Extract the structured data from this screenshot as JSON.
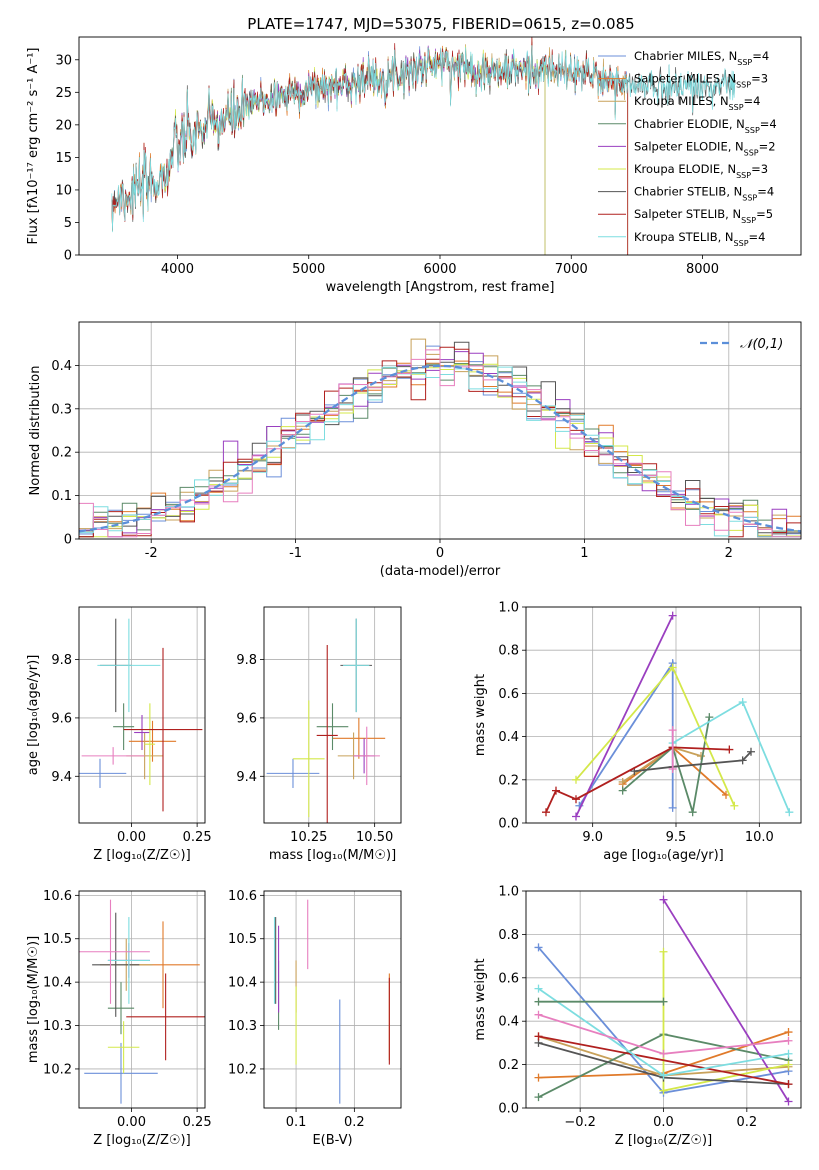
{
  "figure_title": "PLATE=1747, MJD=53075, FIBERID=0615, z=0.085",
  "palette": {
    "chabrier_miles": "#6b8fd9",
    "salpeter_miles": "#e07a2a",
    "kroupa_miles": "#c8a15a",
    "chabrier_elodie": "#5b8a68",
    "salpeter_elodie": "#9a3fc0",
    "kroupa_elodie": "#d4e84a",
    "chabrier_stelib": "#555555",
    "salpeter_stelib": "#b0201f",
    "kroupa_stelib": "#7ddde0",
    "extra_pink": "#e77fbf",
    "normal_curve": "#5b8fd9"
  },
  "chart_data": [
    {
      "id": "spectrum",
      "type": "line",
      "title": "PLATE=1747, MJD=53075, FIBERID=0615, z=0.085",
      "xlabel": "wavelength [Angstrom, rest frame]",
      "ylabel": "Flux [fλ10⁻¹⁷ erg cm⁻² s⁻¹ A⁻¹]",
      "xlim": [
        3250,
        8750
      ],
      "ylim": [
        0,
        33.5
      ],
      "xticks": [
        4000,
        5000,
        6000,
        7000,
        8000
      ],
      "yticks": [
        0,
        5,
        10,
        15,
        20,
        25,
        30
      ],
      "grid": false,
      "legend_position": "upper-right",
      "continuum": {
        "x": [
          3500,
          3700,
          3900,
          4000,
          4200,
          4400,
          4600,
          4800,
          5000,
          5200,
          5400,
          5600,
          5800,
          6000,
          6200,
          6400,
          6600,
          6800,
          7000,
          7200,
          7400
        ],
        "y": [
          8.5,
          10,
          12,
          17,
          19.5,
          21,
          23.5,
          24.5,
          25.5,
          26,
          27,
          27.5,
          28.5,
          29.5,
          29,
          28,
          28.5,
          28.5,
          28,
          27.5,
          26
        ]
      },
      "series": [
        {
          "name": "Chabrier MILES, N_SSP=4",
          "legend_label": "Chabrier MILES, NSSP=4",
          "color_key": "chabrier_miles",
          "wmin": 3500,
          "wmax": 7430
        },
        {
          "name": "Salpeter MILES, N_SSP=3",
          "legend_label": "Salpeter MILES, NSSP=3",
          "color_key": "salpeter_miles",
          "wmin": 3500,
          "wmax": 7430
        },
        {
          "name": "Kroupa MILES, N_SSP=4",
          "legend_label": "Kroupa MILES, NSSP=4",
          "color_key": "kroupa_miles",
          "wmin": 3500,
          "wmax": 7430
        },
        {
          "name": "Chabrier ELODIE, N_SSP=4",
          "legend_label": "Chabrier ELODIE, NSSP=4",
          "color_key": "chabrier_elodie",
          "wmin": 3900,
          "wmax": 6800
        },
        {
          "name": "Salpeter ELODIE, N_SSP=2",
          "legend_label": "Salpeter ELODIE, NSSP=2",
          "color_key": "salpeter_elodie",
          "wmin": 3900,
          "wmax": 6800
        },
        {
          "name": "Kroupa ELODIE, N_SSP=3",
          "legend_label": "Kroupa ELODIE, NSSP=3",
          "color_key": "kroupa_elodie",
          "wmin": 3900,
          "wmax": 6800
        },
        {
          "name": "Chabrier STELIB, N_SSP=4",
          "legend_label": "Chabrier STELIB, NSSP=4",
          "color_key": "chabrier_stelib",
          "wmin": 3500,
          "wmax": 8250
        },
        {
          "name": "Salpeter STELIB, N_SSP=5",
          "legend_label": "Salpeter STELIB, NSSP=5",
          "color_key": "salpeter_stelib",
          "wmin": 3500,
          "wmax": 7430
        },
        {
          "name": "Kroupa STELIB, N_SSP=4",
          "legend_label": "Kroupa STELIB, NSSP=4",
          "color_key": "kroupa_stelib",
          "wmin": 3500,
          "wmax": 8250
        }
      ]
    },
    {
      "id": "residuals",
      "type": "line",
      "xlabel": "(data-model)/error",
      "ylabel": "Normed distribution",
      "xlim": [
        -2.5,
        2.5
      ],
      "ylim": [
        0,
        0.5
      ],
      "xticks": [
        -2,
        -1,
        0,
        1,
        2
      ],
      "yticks": [
        0.0,
        0.1,
        0.2,
        0.3,
        0.4
      ],
      "grid": true,
      "legend_position": "upper-right",
      "legend_label": "𝒩(0,1)",
      "curve": {
        "type": "normal",
        "mean": 0,
        "sigma": 1
      },
      "hist_bin_width": 0.1,
      "hist_colors": [
        "chabrier_miles",
        "salpeter_miles",
        "kroupa_miles",
        "chabrier_elodie",
        "salpeter_elodie",
        "kroupa_elodie",
        "chabrier_stelib",
        "salpeter_stelib",
        "kroupa_stelib",
        "extra_pink"
      ]
    },
    {
      "id": "age_vs_Z",
      "type": "scatter",
      "xlabel": "Z [log₁₀(Z/Z☉)]",
      "ylabel": "age  [log₁₀(age/yr)]",
      "xlim": [
        -0.2,
        0.28
      ],
      "ylim": [
        9.24,
        9.98
      ],
      "xticks": [
        "0.00",
        "0.25"
      ],
      "yticks": [
        "9.4",
        "9.6",
        "9.8"
      ],
      "grid": true,
      "points": [
        {
          "x": -0.12,
          "y": 9.41,
          "xerr": 0.1,
          "yerr": 0.05,
          "c": "chabrier_miles"
        },
        {
          "x": 0.08,
          "y": 9.52,
          "xerr": 0.09,
          "yerr": 0.07,
          "c": "salpeter_miles"
        },
        {
          "x": 0.05,
          "y": 9.47,
          "xerr": 0.07,
          "yerr": 0.08,
          "c": "kroupa_miles"
        },
        {
          "x": -0.03,
          "y": 9.57,
          "xerr": 0.04,
          "yerr": 0.08,
          "c": "chabrier_elodie"
        },
        {
          "x": 0.04,
          "y": 9.55,
          "xerr": 0.03,
          "yerr": 0.06,
          "c": "salpeter_elodie"
        },
        {
          "x": 0.07,
          "y": 9.51,
          "xerr": 0.02,
          "yerr": 0.14,
          "c": "kroupa_elodie"
        },
        {
          "x": -0.06,
          "y": 9.78,
          "xerr": 0.06,
          "yerr": 0.16,
          "c": "chabrier_stelib"
        },
        {
          "x": 0.12,
          "y": 9.56,
          "xerr": 0.15,
          "yerr": 0.28,
          "c": "salpeter_stelib"
        },
        {
          "x": -0.01,
          "y": 9.78,
          "xerr": 0.12,
          "yerr": 0.16,
          "c": "kroupa_stelib"
        },
        {
          "x": -0.07,
          "y": 9.47,
          "xerr": 0.12,
          "yerr": 0.03,
          "c": "extra_pink"
        }
      ]
    },
    {
      "id": "age_vs_mass",
      "type": "scatter",
      "xlabel": "mass [log₁₀(M/M☉)]",
      "ylabel": "",
      "xlim": [
        10.08,
        10.6
      ],
      "ylim": [
        9.24,
        9.98
      ],
      "xticks": [
        "10.25",
        "10.50"
      ],
      "yticks": [
        "9.4",
        "9.6",
        "9.8"
      ],
      "grid": true,
      "points": [
        {
          "x": 10.19,
          "y": 9.41,
          "xerr": 0.1,
          "yerr": 0.05,
          "c": "chabrier_miles"
        },
        {
          "x": 10.44,
          "y": 9.53,
          "xerr": 0.1,
          "yerr": 0.07,
          "c": "salpeter_miles"
        },
        {
          "x": 10.42,
          "y": 9.47,
          "xerr": 0.06,
          "yerr": 0.08,
          "c": "kroupa_miles"
        },
        {
          "x": 10.34,
          "y": 9.57,
          "xerr": 0.06,
          "yerr": 0.08,
          "c": "chabrier_elodie"
        },
        {
          "x": 10.46,
          "y": 9.47,
          "xerr": 0.04,
          "yerr": 0.06,
          "c": "salpeter_elodie"
        },
        {
          "x": 10.25,
          "y": 9.46,
          "xerr": 0.06,
          "yerr": 0.2,
          "c": "kroupa_elodie"
        },
        {
          "x": 10.43,
          "y": 9.78,
          "xerr": 0.06,
          "yerr": 0.16,
          "c": "chabrier_stelib"
        },
        {
          "x": 10.32,
          "y": 9.54,
          "xerr": 0.04,
          "yerr": 0.31,
          "c": "salpeter_stelib"
        },
        {
          "x": 10.43,
          "y": 9.78,
          "xerr": 0.05,
          "yerr": 0.16,
          "c": "kroupa_stelib"
        },
        {
          "x": 10.47,
          "y": 9.47,
          "xerr": 0.05,
          "yerr": 0.1,
          "c": "extra_pink"
        }
      ]
    },
    {
      "id": "weight_vs_age",
      "type": "line",
      "xlabel": "age  [log₁₀(age/yr)]",
      "ylabel": "mass weight",
      "xlim": [
        8.6,
        10.25
      ],
      "ylim": [
        0.0,
        1.0
      ],
      "xticks": [
        "9.0",
        "9.5",
        "10.0"
      ],
      "yticks": [
        "0.0",
        "0.2",
        "0.4",
        "0.6",
        "0.8",
        "1.0"
      ],
      "grid": true,
      "series": [
        {
          "c": "chabrier_miles",
          "x": [
            8.92,
            9.48,
            9.48
          ],
          "y": [
            0.08,
            0.74,
            0.07
          ]
        },
        {
          "c": "salpeter_miles",
          "x": [
            9.18,
            9.48,
            9.8
          ],
          "y": [
            0.18,
            0.35,
            0.13
          ]
        },
        {
          "c": "kroupa_miles",
          "x": [
            9.18,
            9.48,
            9.65
          ],
          "y": [
            0.19,
            0.35,
            0.31
          ]
        },
        {
          "c": "chabrier_elodie",
          "x": [
            9.18,
            9.48,
            9.6,
            9.7
          ],
          "y": [
            0.15,
            0.35,
            0.05,
            0.49
          ]
        },
        {
          "c": "salpeter_elodie",
          "x": [
            8.9,
            9.48
          ],
          "y": [
            0.03,
            0.96
          ]
        },
        {
          "c": "kroupa_elodie",
          "x": [
            8.9,
            9.48,
            9.85
          ],
          "y": [
            0.2,
            0.72,
            0.08
          ]
        },
        {
          "c": "chabrier_stelib",
          "x": [
            9.25,
            9.48,
            9.9,
            9.95
          ],
          "y": [
            0.24,
            0.26,
            0.29,
            0.33
          ]
        },
        {
          "c": "salpeter_stelib",
          "x": [
            8.72,
            8.78,
            8.9,
            9.48,
            9.82
          ],
          "y": [
            0.05,
            0.15,
            0.11,
            0.35,
            0.34
          ]
        },
        {
          "c": "kroupa_stelib",
          "x": [
            9.48,
            9.9,
            10.18
          ],
          "y": [
            0.37,
            0.56,
            0.05
          ]
        },
        {
          "c": "extra_pink",
          "x": [
            9.48,
            9.48
          ],
          "y": [
            0.43,
            0.25
          ]
        }
      ]
    },
    {
      "id": "mass_vs_Z",
      "type": "scatter",
      "xlabel": "Z [log₁₀(Z/Z☉)]",
      "ylabel": "mass [log₁₀(M/M☉)]",
      "xlim": [
        -0.2,
        0.28
      ],
      "ylim": [
        10.11,
        10.61
      ],
      "xticks": [
        "0.00",
        "0.25"
      ],
      "yticks": [
        "10.2",
        "10.3",
        "10.4",
        "10.5",
        "10.6"
      ],
      "grid": true,
      "points": [
        {
          "x": -0.04,
          "y": 10.19,
          "xerr": 0.14,
          "yerr": 0.07,
          "c": "chabrier_miles"
        },
        {
          "x": 0.12,
          "y": 10.44,
          "xerr": 0.14,
          "yerr": 0.1,
          "c": "salpeter_miles"
        },
        {
          "x": -0.02,
          "y": 10.44,
          "xerr": 0.1,
          "yerr": 0.06,
          "c": "kroupa_miles"
        },
        {
          "x": -0.04,
          "y": 10.34,
          "xerr": 0.05,
          "yerr": 0.06,
          "c": "chabrier_elodie"
        },
        {
          "x": -0.01,
          "y": 10.45,
          "xerr": 0.08,
          "yerr": 0.04,
          "c": "salpeter_elodie"
        },
        {
          "x": -0.03,
          "y": 10.25,
          "xerr": 0.06,
          "yerr": 0.06,
          "c": "kroupa_elodie"
        },
        {
          "x": -0.06,
          "y": 10.44,
          "xerr": 0.09,
          "yerr": 0.12,
          "c": "chabrier_stelib"
        },
        {
          "x": 0.13,
          "y": 10.32,
          "xerr": 0.15,
          "yerr": 0.1,
          "c": "salpeter_stelib"
        },
        {
          "x": -0.01,
          "y": 10.45,
          "xerr": 0.08,
          "yerr": 0.1,
          "c": "kroupa_stelib"
        },
        {
          "x": -0.08,
          "y": 10.47,
          "xerr": 0.15,
          "yerr": 0.12,
          "c": "extra_pink"
        }
      ]
    },
    {
      "id": "mass_vs_ebv",
      "type": "scatter",
      "xlabel": "E(B-V)",
      "ylabel": "",
      "xlim": [
        0.045,
        0.28
      ],
      "ylim": [
        10.11,
        10.61
      ],
      "xticks": [
        "0.1",
        "0.2"
      ],
      "yticks": [
        "10.2",
        "10.3",
        "10.4",
        "10.5",
        "10.6"
      ],
      "grid": true,
      "points": [
        {
          "x": 0.175,
          "y": 10.24,
          "yerr": 0.12,
          "c": "chabrier_miles"
        },
        {
          "x": 0.26,
          "y": 10.32,
          "yerr": 0.1,
          "c": "salpeter_miles"
        },
        {
          "x": 0.1,
          "y": 10.39,
          "yerr": 0.06,
          "c": "kroupa_miles"
        },
        {
          "x": 0.07,
          "y": 10.37,
          "yerr": 0.08,
          "c": "chabrier_elodie"
        },
        {
          "x": 0.07,
          "y": 10.43,
          "yerr": 0.1,
          "c": "salpeter_elodie"
        },
        {
          "x": 0.1,
          "y": 10.3,
          "yerr": 0.09,
          "c": "kroupa_elodie"
        },
        {
          "x": 0.065,
          "y": 10.45,
          "yerr": 0.1,
          "c": "chabrier_stelib"
        },
        {
          "x": 0.26,
          "y": 10.31,
          "yerr": 0.1,
          "c": "salpeter_stelib"
        },
        {
          "x": 0.063,
          "y": 10.45,
          "yerr": 0.1,
          "c": "kroupa_stelib"
        },
        {
          "x": 0.12,
          "y": 10.51,
          "yerr": 0.08,
          "c": "extra_pink"
        }
      ]
    },
    {
      "id": "weight_vs_Z",
      "type": "line",
      "xlabel": "Z [log₁₀(Z/Z☉)]",
      "ylabel": "mass weight",
      "xlim": [
        -0.33,
        0.33
      ],
      "ylim": [
        0.0,
        1.0
      ],
      "xticks": [
        "−0.2",
        "0.0",
        "0.2"
      ],
      "yticks": [
        "0.0",
        "0.2",
        "0.4",
        "0.6",
        "0.8",
        "1.0"
      ],
      "grid": true,
      "series": [
        {
          "c": "chabrier_miles",
          "x": [
            -0.3,
            0.0,
            0.3
          ],
          "y": [
            0.74,
            0.07,
            0.17
          ]
        },
        {
          "c": "salpeter_miles",
          "x": [
            -0.3,
            0.0,
            0.3
          ],
          "y": [
            0.14,
            0.16,
            0.35
          ]
        },
        {
          "c": "kroupa_miles",
          "x": [
            -0.3,
            0.0,
            0.3
          ],
          "y": [
            0.33,
            0.15,
            0.19
          ]
        },
        {
          "c": "chabrier_elodie",
          "x": [
            -0.3,
            0.0,
            0.3
          ],
          "y": [
            0.05,
            0.34,
            0.22
          ]
        },
        {
          "c": "salpeter_elodie",
          "x": [
            0.0,
            0.3
          ],
          "y": [
            0.96,
            0.03
          ]
        },
        {
          "c": "kroupa_elodie",
          "x": [
            0.0,
            0.0,
            0.3
          ],
          "y": [
            0.72,
            0.08,
            0.2
          ]
        },
        {
          "c": "chabrier_stelib",
          "x": [
            -0.3,
            0.0,
            0.3
          ],
          "y": [
            0.3,
            0.14,
            0.11
          ]
        },
        {
          "c": "salpeter_stelib",
          "x": [
            -0.3,
            0.3
          ],
          "y": [
            0.33,
            0.11
          ]
        },
        {
          "c": "kroupa_stelib",
          "x": [
            -0.3,
            0.0,
            0.3
          ],
          "y": [
            0.55,
            0.15,
            0.25
          ]
        },
        {
          "c": "extra_pink",
          "x": [
            -0.3,
            0.0,
            0.3
          ],
          "y": [
            0.43,
            0.25,
            0.31
          ]
        },
        {
          "c": "chabrier_elodie",
          "x": [
            -0.3,
            0.0
          ],
          "y": [
            0.49,
            0.49
          ]
        }
      ]
    }
  ]
}
